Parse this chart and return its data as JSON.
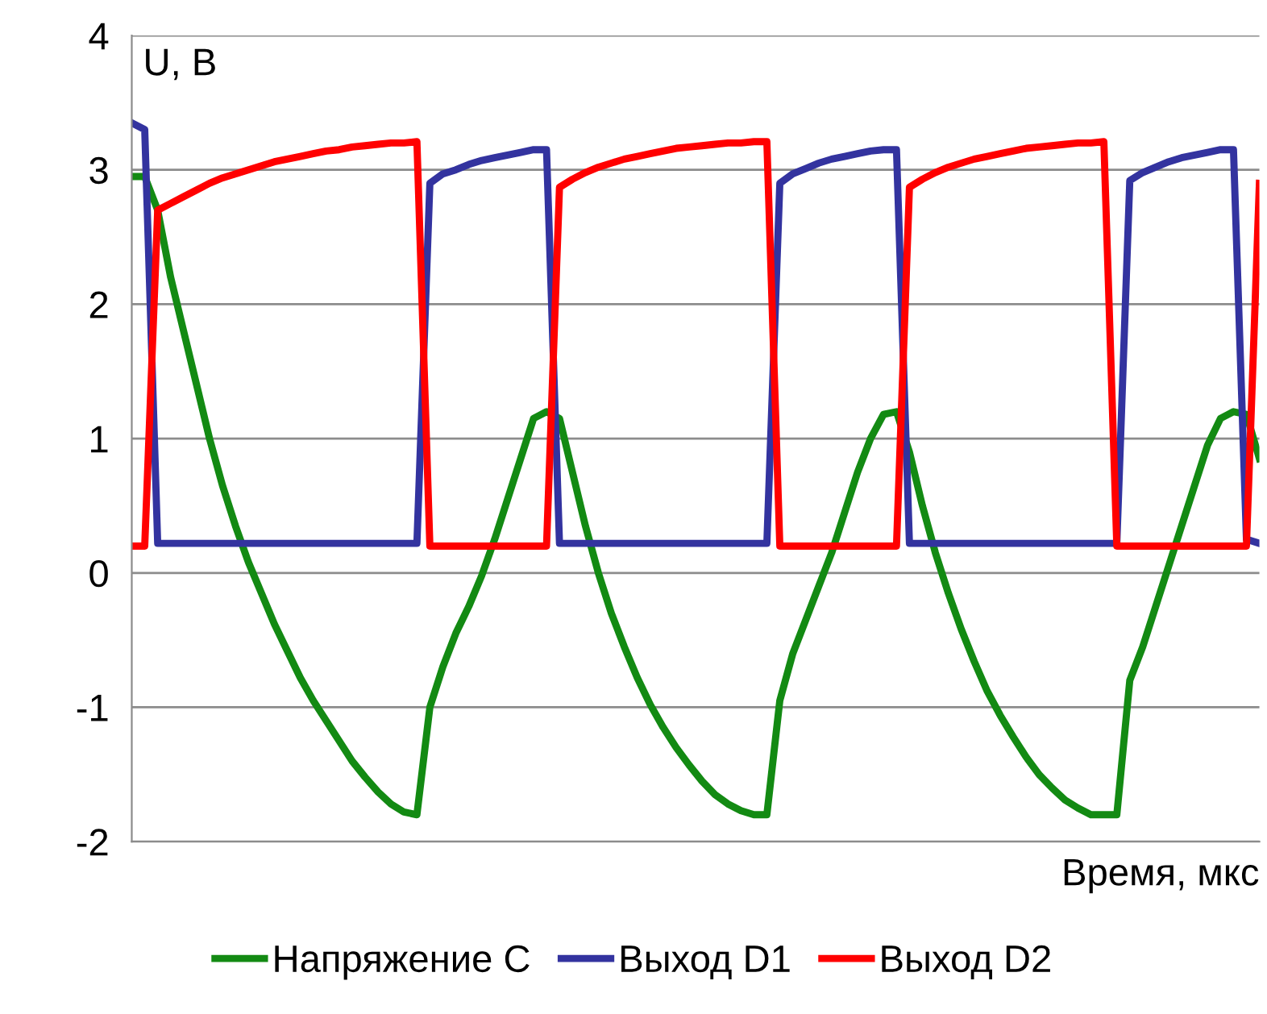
{
  "chart_data": {
    "type": "line",
    "ylabel": "U, B",
    "xlabel": "Время, мкс",
    "categories": [
      null,
      null,
      null,
      null,
      null,
      null,
      null,
      null,
      null,
      null,
      null,
      null,
      null,
      null,
      null,
      null,
      null,
      null,
      null,
      null,
      null,
      null,
      null,
      null,
      null,
      null,
      null,
      null,
      null,
      null,
      null,
      null,
      null,
      null,
      null,
      null,
      null,
      null,
      null,
      null,
      null,
      null,
      null,
      null,
      null,
      null,
      null,
      null,
      null,
      null,
      null,
      null,
      null,
      null,
      null,
      null,
      null,
      null,
      null,
      null,
      null,
      null,
      null,
      null,
      null,
      null,
      null,
      null,
      null,
      null,
      null,
      null,
      null,
      null,
      null,
      null,
      null,
      null,
      null,
      null,
      null,
      null,
      null,
      null,
      null,
      null,
      null,
      null
    ],
    "series": [
      {
        "name": "Напряжение C",
        "color": "#138a13",
        "values": [
          2.95,
          2.95,
          2.7,
          2.2,
          1.8,
          1.4,
          1.0,
          0.65,
          0.35,
          0.08,
          -0.15,
          -0.38,
          -0.58,
          -0.78,
          -0.95,
          -1.1,
          -1.25,
          -1.4,
          -1.52,
          -1.63,
          -1.72,
          -1.78,
          -1.8,
          -1.0,
          -0.7,
          -0.45,
          -0.25,
          -0.02,
          0.25,
          0.55,
          0.85,
          1.15,
          1.2,
          1.15,
          0.75,
          0.35,
          0.0,
          -0.3,
          -0.55,
          -0.78,
          -0.98,
          -1.15,
          -1.3,
          -1.43,
          -1.55,
          -1.65,
          -1.72,
          -1.77,
          -1.8,
          -1.8,
          -0.95,
          -0.6,
          -0.35,
          -0.1,
          0.15,
          0.45,
          0.75,
          1.0,
          1.18,
          1.2,
          0.9,
          0.5,
          0.15,
          -0.15,
          -0.42,
          -0.66,
          -0.88,
          -1.06,
          -1.22,
          -1.37,
          -1.5,
          -1.6,
          -1.69,
          -1.75,
          -1.8,
          -1.8,
          -1.8,
          -0.8,
          -0.55,
          -0.25,
          0.05,
          0.35,
          0.65,
          0.95,
          1.15,
          1.2,
          1.18,
          0.85
        ]
      },
      {
        "name": "Выход D1",
        "color": "#33339f",
        "values": [
          3.35,
          3.3,
          0.22,
          0.22,
          0.22,
          0.22,
          0.22,
          0.22,
          0.22,
          0.22,
          0.22,
          0.22,
          0.22,
          0.22,
          0.22,
          0.22,
          0.22,
          0.22,
          0.22,
          0.22,
          0.22,
          0.22,
          0.22,
          2.9,
          2.97,
          3.0,
          3.04,
          3.07,
          3.09,
          3.11,
          3.13,
          3.15,
          3.15,
          0.22,
          0.22,
          0.22,
          0.22,
          0.22,
          0.22,
          0.22,
          0.22,
          0.22,
          0.22,
          0.22,
          0.22,
          0.22,
          0.22,
          0.22,
          0.22,
          0.22,
          2.9,
          2.97,
          3.01,
          3.05,
          3.08,
          3.1,
          3.12,
          3.14,
          3.15,
          3.15,
          0.22,
          0.22,
          0.22,
          0.22,
          0.22,
          0.22,
          0.22,
          0.22,
          0.22,
          0.22,
          0.22,
          0.22,
          0.22,
          0.22,
          0.22,
          0.22,
          0.22,
          2.92,
          2.98,
          3.02,
          3.06,
          3.09,
          3.11,
          3.13,
          3.15,
          3.15,
          0.25,
          0.22
        ]
      },
      {
        "name": "Выход D2",
        "color": "#ff0000",
        "values": [
          0.2,
          0.2,
          2.7,
          2.75,
          2.8,
          2.85,
          2.9,
          2.94,
          2.97,
          3.0,
          3.03,
          3.06,
          3.08,
          3.1,
          3.12,
          3.14,
          3.15,
          3.17,
          3.18,
          3.19,
          3.2,
          3.2,
          3.21,
          0.2,
          0.2,
          0.2,
          0.2,
          0.2,
          0.2,
          0.2,
          0.2,
          0.2,
          0.2,
          2.87,
          2.93,
          2.98,
          3.02,
          3.05,
          3.08,
          3.1,
          3.12,
          3.14,
          3.16,
          3.17,
          3.18,
          3.19,
          3.2,
          3.2,
          3.21,
          3.21,
          0.2,
          0.2,
          0.2,
          0.2,
          0.2,
          0.2,
          0.2,
          0.2,
          0.2,
          0.2,
          2.87,
          2.93,
          2.98,
          3.02,
          3.05,
          3.08,
          3.1,
          3.12,
          3.14,
          3.16,
          3.17,
          3.18,
          3.19,
          3.2,
          3.2,
          3.21,
          0.2,
          0.2,
          0.2,
          0.2,
          0.2,
          0.2,
          0.2,
          0.2,
          0.2,
          0.2,
          0.2,
          2.9
        ]
      }
    ],
    "ylim": [
      -2,
      4
    ],
    "yticks": [
      -2,
      -1,
      0,
      1,
      2,
      3,
      4
    ],
    "grid": "y",
    "legend": "bottom",
    "marker": "none",
    "line_style": "solid"
  }
}
